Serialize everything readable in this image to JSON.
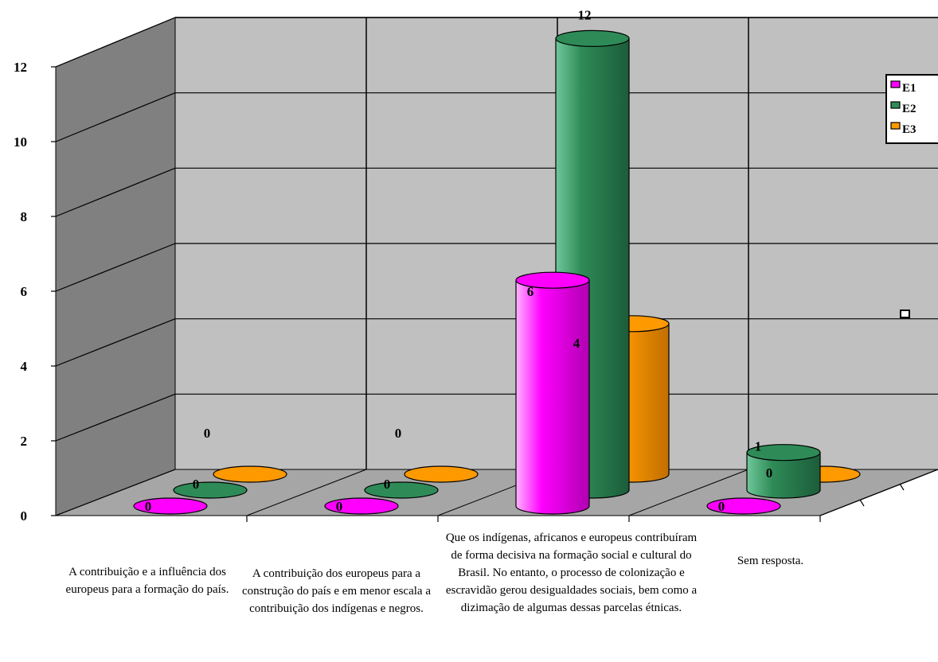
{
  "chart_data": {
    "type": "bar",
    "title": "",
    "xlabel": "",
    "ylabel": "",
    "ylim": [
      0,
      12
    ],
    "yticks": [
      "0",
      "2",
      "4",
      "6",
      "8",
      "10",
      "12"
    ],
    "categories": [
      "A contribuição e a influência dos europeus para a formação do país.",
      "A contribuição dos europeus para a construção do país e em menor escala a contribuição dos indígenas e negros.",
      "Que os indígenas, africanos e europeus contribuíram de forma decisiva na formação social e cultural do Brasil. No entanto, o processo de colonização e escravidão gerou desigualdades sociais, bem como a dizimação de algumas dessas parcelas étnicas.",
      "Sem resposta."
    ],
    "series": [
      {
        "name": "E1",
        "values": [
          0,
          0,
          6,
          0
        ],
        "color": "#ff00ff"
      },
      {
        "name": "E2",
        "values": [
          0,
          0,
          12,
          1
        ],
        "color": "#2e8b57"
      },
      {
        "name": "E3",
        "values": [
          0,
          0,
          4,
          0
        ],
        "color": "#ff9900"
      }
    ],
    "grid": true,
    "legend_position": "right",
    "style": "3d-cylinder"
  }
}
